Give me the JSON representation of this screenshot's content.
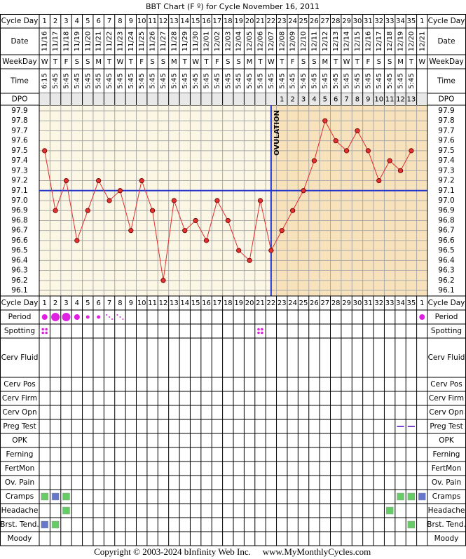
{
  "title": "BBT Chart (F º) for Cycle November 16, 2011",
  "footer": {
    "copyright": "Copyright © 2003-2024 bInfinity Web Inc.",
    "site": "www.MyMonthlyCycles.com"
  },
  "chart_data": {
    "type": "line",
    "labels": {
      "cycle_day": "Cycle Day",
      "date": "Date",
      "weekday": "WeekDay",
      "time": "Time",
      "dpo": "DPO"
    },
    "cycle_days": [
      1,
      2,
      3,
      4,
      5,
      6,
      7,
      8,
      9,
      10,
      11,
      12,
      13,
      14,
      15,
      16,
      17,
      18,
      19,
      20,
      21,
      22,
      23,
      24,
      25,
      26,
      27,
      28,
      29,
      30,
      31,
      32,
      33,
      34,
      35,
      1
    ],
    "dates": [
      "11/16",
      "11/17",
      "11/18",
      "11/19",
      "11/20",
      "11/21",
      "11/22",
      "11/23",
      "11/24",
      "11/25",
      "11/26",
      "11/27",
      "11/28",
      "11/29",
      "11/30",
      "12/01",
      "12/02",
      "12/03",
      "12/04",
      "12/05",
      "12/06",
      "12/07",
      "12/08",
      "12/09",
      "12/10",
      "12/11",
      "12/12",
      "12/13",
      "12/14",
      "12/15",
      "12/16",
      "12/17",
      "12/18",
      "12/19",
      "12/20",
      "12/21"
    ],
    "weekdays": [
      "W",
      "T",
      "F",
      "S",
      "S",
      "M",
      "T",
      "W",
      "T",
      "F",
      "S",
      "S",
      "M",
      "T",
      "W",
      "T",
      "F",
      "S",
      "S",
      "M",
      "T",
      "W",
      "T",
      "F",
      "S",
      "S",
      "M",
      "T",
      "W",
      "T",
      "F",
      "S",
      "S",
      "M",
      "T",
      "W"
    ],
    "times": [
      "6:15",
      "5:45",
      "5:45",
      "5:45",
      "5:45",
      "5:45",
      "5:45",
      "5:45",
      "5:45",
      "5:45",
      "5:45",
      "5:45",
      "5:45",
      "5:45",
      "5:45",
      "5:45",
      "5:45",
      "5:45",
      "5:45",
      "5:45",
      "5:45",
      "5:45",
      "5:45",
      "5:45",
      "5:45",
      "5:45",
      "5:45",
      "5:45",
      "5:45",
      "5:45",
      "5:45",
      "5:45",
      "5:45",
      "5:45",
      "5:45",
      null
    ],
    "dpo": [
      null,
      null,
      null,
      null,
      null,
      null,
      null,
      null,
      null,
      null,
      null,
      null,
      null,
      null,
      null,
      null,
      null,
      null,
      null,
      null,
      null,
      null,
      1,
      2,
      3,
      4,
      5,
      6,
      7,
      8,
      9,
      10,
      11,
      12,
      13,
      null
    ],
    "values": [
      97.5,
      96.9,
      97.2,
      96.6,
      96.9,
      97.2,
      97.0,
      97.1,
      96.7,
      97.2,
      96.9,
      96.2,
      97.0,
      96.7,
      96.8,
      96.6,
      97.0,
      96.8,
      96.5,
      96.4,
      97.0,
      96.5,
      96.7,
      96.9,
      97.1,
      97.4,
      97.8,
      97.6,
      97.5,
      97.7,
      97.5,
      97.2,
      97.4,
      97.3,
      97.5,
      null
    ],
    "color": "#e03030",
    "ylim": [
      96.1,
      97.9
    ],
    "yticks": [
      97.9,
      97.8,
      97.7,
      97.6,
      97.5,
      97.4,
      97.3,
      97.2,
      97.1,
      {
        "value": 97.0,
        "label": "97.0"
      },
      96.9,
      96.8,
      96.7,
      96.6,
      96.5,
      96.4,
      96.3,
      96.2,
      96.1
    ],
    "coverline": 97.1,
    "ovulation_day": 22,
    "ovulation_label": "OVULATION",
    "rows": [
      {
        "label": "Period",
        "color": "#e020e0",
        "marks": [
          {
            "column": 1,
            "size": 3
          },
          {
            "column": 2,
            "size": 4
          },
          {
            "column": 3,
            "size": 4
          },
          {
            "column": 4,
            "size": 3
          },
          {
            "column": 5,
            "size": 2
          },
          {
            "column": 6,
            "size": 2
          },
          {
            "column": 7,
            "size": 1
          },
          {
            "column": 8,
            "size": 1
          },
          {
            "column": 36,
            "size": 3
          }
        ]
      },
      {
        "label": "Spotting",
        "color": "#e020e0",
        "marks": [
          {
            "column": 1
          },
          {
            "column": 21
          }
        ]
      },
      {
        "label": "Cerv Fluid",
        "marks": []
      },
      {
        "label": "Cerv Pos",
        "marks": []
      },
      {
        "label": "Cerv Firm",
        "marks": []
      },
      {
        "label": "Cerv Opn",
        "marks": []
      },
      {
        "label": "Preg Test",
        "color": "#7744cc",
        "marks": [
          {
            "column": 34
          },
          {
            "column": 35
          }
        ]
      },
      {
        "label": "OPK",
        "marks": []
      },
      {
        "label": "Ferning",
        "marks": []
      },
      {
        "label": "FertMon",
        "marks": []
      },
      {
        "label": "Ov. Pain",
        "marks": []
      },
      {
        "label": "Cramps",
        "marks": [
          {
            "column": 1,
            "color": "#66cc66"
          },
          {
            "column": 2,
            "color": "#6677cc"
          },
          {
            "column": 3,
            "color": "#66cc66"
          },
          {
            "column": 34,
            "color": "#66cc66"
          },
          {
            "column": 35,
            "color": "#66cc66"
          },
          {
            "column": 36,
            "color": "#6677cc"
          }
        ]
      },
      {
        "label": "Headache",
        "marks": [
          {
            "column": 3,
            "color": "#66cc66"
          },
          {
            "column": 33,
            "color": "#66cc66"
          }
        ]
      },
      {
        "label": "Brst. Tend.",
        "marks": [
          {
            "column": 1,
            "color": "#6677cc"
          },
          {
            "column": 2,
            "color": "#66cc66"
          },
          {
            "column": 35,
            "color": "#66cc66"
          }
        ]
      },
      {
        "label": "Moody",
        "marks": []
      }
    ]
  }
}
